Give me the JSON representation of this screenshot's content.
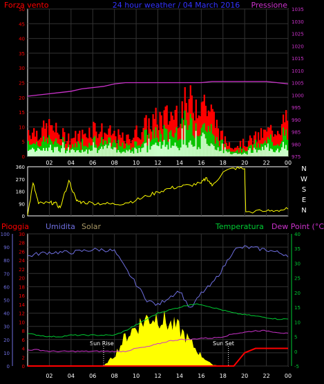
{
  "header": {
    "title": "24 hour weather / 04 March 2016",
    "left_label": "Forza vento",
    "right_label": "Pressione"
  },
  "wind_panel": {
    "y_ticks": [
      "0",
      "5",
      "10",
      "15",
      "20",
      "25",
      "30",
      "35",
      "40",
      "45",
      "50"
    ],
    "pressure_ticks": [
      "975",
      "980",
      "985",
      "990",
      "995",
      "1000",
      "1005",
      "1010",
      "1015",
      "1020",
      "1025",
      "1030",
      "1035"
    ]
  },
  "dir_panel": {
    "y_ticks": [
      "0",
      "90",
      "180",
      "270",
      "360"
    ],
    "compass": [
      "N",
      "W",
      "S",
      "E",
      "N"
    ]
  },
  "x_ticks": [
    "02",
    "04",
    "06",
    "08",
    "10",
    "12",
    "14",
    "16",
    "18",
    "20",
    "22",
    "00"
  ],
  "bottom_panel": {
    "labels": {
      "rain": "Pioggia",
      "humidity": "Umidita",
      "solar": "Solar",
      "temperature": "Temperatura",
      "dewpoint": "Dew Point (°C)"
    },
    "humidity_ticks": [
      "0",
      "10",
      "20",
      "30",
      "40",
      "50",
      "60",
      "70",
      "80",
      "90",
      "100"
    ],
    "rain_ticks": [
      "0",
      "2",
      "4",
      "6",
      "8",
      "10",
      "12",
      "14",
      "16",
      "18",
      "20",
      "22",
      "24",
      "26",
      "28",
      "30"
    ],
    "temp_ticks": [
      "-5",
      "0",
      "5",
      "10",
      "15",
      "20",
      "25",
      "30",
      "35",
      "40"
    ],
    "sunrise_label": "Sun Rise",
    "sunset_label": "Sun Set"
  },
  "colors": {
    "wind_gust": "#ff0000",
    "wind_avg": "#00cc00",
    "wind_low": "#ccffcc",
    "pressure": "#cc33cc",
    "direction": "#ffff00",
    "humidity": "#6f6fe0",
    "rain": "#ff0000",
    "solar": "#ffff00",
    "temperature": "#00cc33",
    "dewpoint": "#cc33cc",
    "axis_left": "#ff0000",
    "axis_right": "#cc33cc",
    "frame": "#ffffff"
  },
  "chart_data": [
    {
      "type": "line",
      "ylim": [
        0,
        50
      ],
      "y2lim": [
        975,
        1035
      ],
      "x_hours": [
        0,
        1,
        2,
        3,
        4,
        5,
        6,
        7,
        8,
        9,
        10,
        11,
        12,
        13,
        14,
        15,
        16,
        17,
        18,
        19,
        20,
        21,
        22,
        23,
        24
      ],
      "series": [
        {
          "name": "Forza vento",
          "values": [
            10,
            9,
            11,
            8,
            7,
            8,
            11,
            9,
            8,
            6,
            9,
            12,
            14,
            15,
            18,
            20,
            22,
            15,
            6,
            4,
            5,
            7,
            9,
            11,
            14
          ]
        },
        {
          "name": "Pressione",
          "values": [
            999.5,
            1000,
            1000.5,
            1001,
            1001.5,
            1002.5,
            1003,
            1003.5,
            1004.5,
            1005,
            1005,
            1005,
            1005,
            1005,
            1005,
            1005,
            1005,
            1005.5,
            1005.5,
            1005.5,
            1005.5,
            1005.5,
            1005.5,
            1005,
            1004.5
          ]
        }
      ]
    },
    {
      "type": "line",
      "ylim": [
        0,
        360
      ],
      "x_hours": [
        0,
        0.5,
        1,
        2,
        2.5,
        3,
        3.8,
        4.5,
        5,
        6,
        7,
        8,
        9,
        10,
        11,
        12,
        13,
        14,
        15,
        16,
        16.5,
        17,
        18,
        19,
        20,
        20.1,
        22,
        23,
        24
      ],
      "series": [
        {
          "values": [
            5,
            240,
            90,
            95,
            95,
            60,
            260,
            110,
            100,
            95,
            90,
            85,
            95,
            115,
            145,
            175,
            200,
            215,
            225,
            240,
            280,
            220,
            320,
            350,
            345,
            30,
            35,
            40,
            50
          ]
        }
      ]
    },
    {
      "type": "area",
      "x_hours": [
        0,
        1,
        2,
        3,
        4,
        5,
        6,
        7,
        8,
        9,
        10,
        11,
        12,
        13,
        14,
        15,
        16,
        17,
        18,
        19,
        20,
        21,
        22,
        23,
        24
      ],
      "series": [
        {
          "name": "Umidita",
          "values": [
            83,
            85,
            86,
            86,
            86,
            87,
            88,
            88,
            87,
            74,
            62,
            50,
            46,
            52,
            57,
            43,
            55,
            62,
            74,
            88,
            90,
            89,
            88,
            86,
            84
          ]
        },
        {
          "name": "Temperatura",
          "values": [
            6,
            5.5,
            5,
            5,
            5.5,
            5.5,
            5.5,
            5.5,
            5.5,
            7,
            9,
            11,
            13,
            14,
            15,
            16,
            16,
            15,
            14,
            13,
            12.5,
            12,
            11.5,
            11,
            11
          ]
        },
        {
          "name": "Dew Point (°C)",
          "values": [
            0.5,
            0.5,
            0,
            0,
            0,
            0,
            0,
            0,
            0,
            0,
            1,
            1.5,
            2.5,
            3.5,
            4,
            4,
            4.5,
            4.5,
            5,
            6,
            6.5,
            7,
            7,
            6.5,
            6
          ]
        },
        {
          "name": "Pioggia",
          "values": [
            0,
            0,
            0,
            0,
            0,
            0,
            0,
            0,
            0,
            0,
            0,
            0,
            0,
            0,
            0,
            0,
            0,
            0,
            0,
            0,
            3,
            4,
            4,
            4,
            4
          ]
        },
        {
          "name": "Solar",
          "values": [
            0,
            0,
            0,
            0,
            0,
            0,
            0,
            0,
            8,
            22,
            30,
            36,
            38,
            32,
            28,
            18,
            8,
            1,
            0,
            0,
            0,
            0,
            0,
            0,
            0
          ]
        }
      ],
      "y_humidity_lim": [
        0,
        100
      ],
      "y_rain_lim": [
        0,
        30
      ],
      "y_temp_lim": [
        -5,
        40
      ]
    }
  ]
}
